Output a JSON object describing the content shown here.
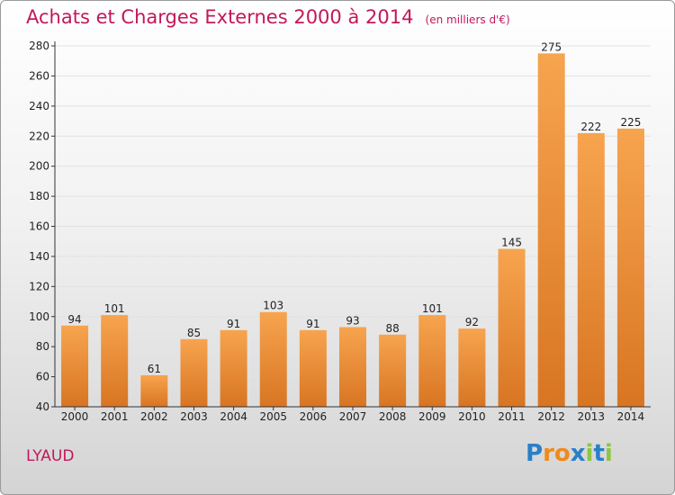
{
  "title": "Achats et Charges Externes 2000 à 2014",
  "unit": "(en milliers d'€)",
  "commune": "LYAUD",
  "logo": {
    "text": "Proxiti",
    "letters": [
      "P",
      "r",
      "o",
      "x",
      "i",
      "t",
      "i"
    ],
    "colors": [
      "#2a7fc8",
      "#f08a1c",
      "#f08a1c",
      "#2a7fc8",
      "#8dc63f",
      "#2a7fc8",
      "#8dc63f"
    ]
  },
  "colors": {
    "bar_light": "#f7a44f",
    "bar_dark": "#d87522",
    "title": "#c2185b"
  },
  "chart_data": {
    "type": "bar",
    "categories": [
      "2000",
      "2001",
      "2002",
      "2003",
      "2004",
      "2005",
      "2006",
      "2007",
      "2008",
      "2009",
      "2010",
      "2011",
      "2012",
      "2013",
      "2014"
    ],
    "values": [
      94,
      101,
      61,
      85,
      91,
      103,
      91,
      93,
      88,
      101,
      92,
      145,
      275,
      222,
      225
    ],
    "value_labels": [
      "94",
      "101",
      "61",
      "85",
      "91",
      "103",
      "91",
      "93",
      "88",
      "101",
      "92",
      "145",
      "275",
      "222",
      "225"
    ],
    "yticks": [
      "40",
      "60",
      "80",
      "100",
      "120",
      "140",
      "160",
      "180",
      "200",
      "220",
      "240",
      "260",
      "280"
    ],
    "ylim": [
      40,
      280
    ],
    "grid": true,
    "title": "Achats et Charges Externes 2000 à 2014",
    "xlabel": "",
    "ylabel": ""
  }
}
